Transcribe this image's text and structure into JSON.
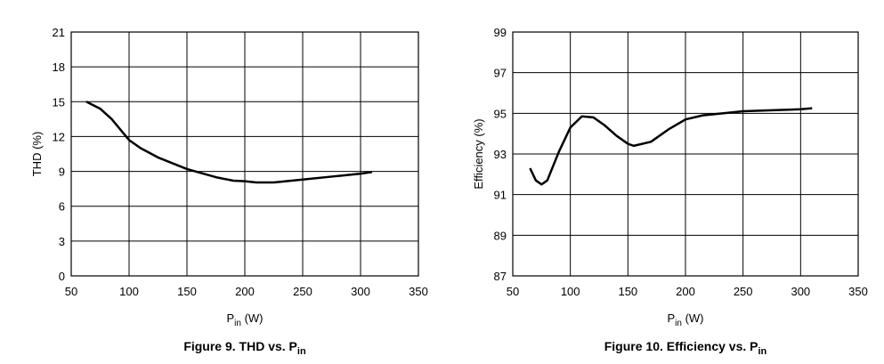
{
  "chart_data": [
    {
      "type": "line",
      "title": {
        "text": "Figure 9. THD vs. P",
        "subscript": "in"
      },
      "xlabel": {
        "base": "P",
        "subscript": "in",
        "unit": " (W)"
      },
      "ylabel": "THD (%)",
      "x": [
        63,
        75,
        85,
        95,
        100,
        110,
        125,
        150,
        175,
        190,
        200,
        210,
        225,
        250,
        275,
        300,
        310
      ],
      "series": [
        {
          "color": "#000000",
          "values": [
            15,
            14.4,
            13.5,
            12.3,
            11.7,
            11,
            10.2,
            9.2,
            8.5,
            8.2,
            8.15,
            8.05,
            8.05,
            8.3,
            8.55,
            8.8,
            8.95
          ]
        }
      ],
      "xlim": [
        50,
        350
      ],
      "xticks": [
        50,
        100,
        150,
        200,
        250,
        300,
        350
      ],
      "ylim": [
        0,
        21
      ],
      "yticks": [
        0,
        3,
        6,
        9,
        12,
        15,
        18,
        21
      ],
      "grid": true
    },
    {
      "type": "line",
      "title": {
        "text": "Figure 10. Efficiency vs. P",
        "subscript": "in"
      },
      "xlabel": {
        "base": "P",
        "subscript": "in",
        "unit": " (W)"
      },
      "ylabel": "Efficiency (%)",
      "x": [
        65,
        70,
        75,
        80,
        90,
        100,
        110,
        120,
        130,
        140,
        150,
        155,
        170,
        185,
        200,
        215,
        250,
        275,
        300,
        310
      ],
      "series": [
        {
          "color": "#000000",
          "values": [
            92.3,
            91.7,
            91.5,
            91.7,
            93.1,
            94.3,
            94.85,
            94.8,
            94.4,
            93.9,
            93.5,
            93.4,
            93.6,
            94.2,
            94.7,
            94.9,
            95.1,
            95.15,
            95.2,
            95.25
          ]
        }
      ],
      "xlim": [
        50,
        350
      ],
      "xticks": [
        50,
        100,
        150,
        200,
        250,
        300,
        350
      ],
      "ylim": [
        87,
        99
      ],
      "yticks": [
        87,
        89,
        91,
        93,
        95,
        97,
        99
      ],
      "grid": true
    }
  ]
}
